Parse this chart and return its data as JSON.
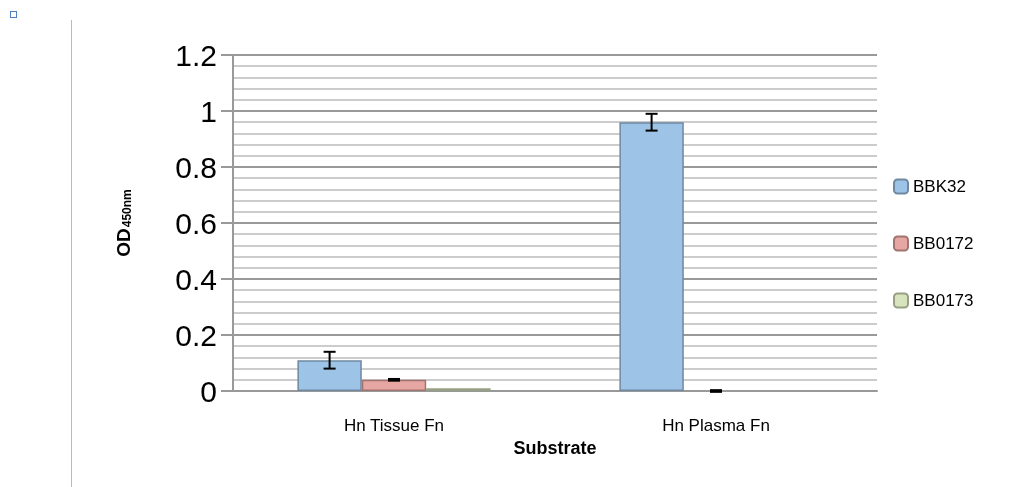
{
  "chart_data": {
    "type": "bar",
    "xlabel": "Substrate",
    "ylabel": "OD$_{450nm}$",
    "categories": [
      "Hn Tissue Fn",
      "Hn Plasma Fn"
    ],
    "series": [
      {
        "name": "BBK32",
        "color": "#9dc3e6",
        "values": [
          0.11,
          0.96
        ],
        "errors": [
          0.03,
          0.03
        ]
      },
      {
        "name": "BB0172",
        "color": "#e6a6a1",
        "values": [
          0.04,
          0
        ],
        "errors": [
          0.003,
          0.003
        ]
      },
      {
        "name": "BB0173",
        "color": "#d7e4bd",
        "values": [
          0.01,
          0
        ],
        "errors": [
          null,
          null
        ]
      }
    ],
    "ylim": [
      0,
      1.2
    ],
    "yticks": [
      0,
      0.2,
      0.4,
      0.6,
      0.8,
      1,
      1.2
    ],
    "grid": "y",
    "legend": "right"
  }
}
